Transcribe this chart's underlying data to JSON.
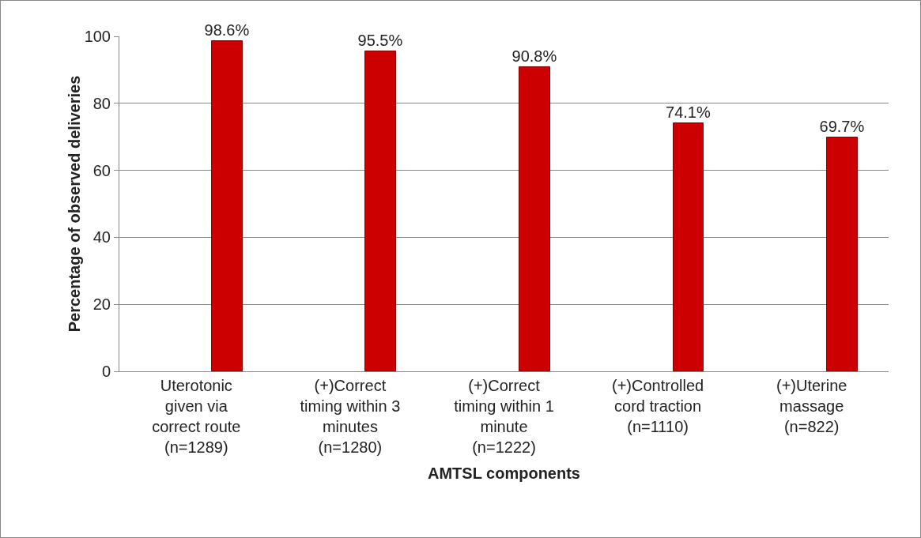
{
  "chart_data": {
    "type": "bar",
    "xlabel": "AMTSL components",
    "ylabel": "Percentage of observed deliveries",
    "categories": [
      "Uterotonic given via correct route (n=1289)",
      "(+)Correct timing within 3 minutes (n=1280)",
      "(+)Correct timing within 1 minute (n=1222)",
      "(+)Controlled cord traction (n=1110)",
      "(+)Uterine massage (n=822)"
    ],
    "values": [
      98.6,
      95.5,
      90.8,
      74.1,
      69.7
    ],
    "value_labels": [
      "98.6%",
      "95.5%",
      "90.8%",
      "74.1%",
      "69.7%"
    ],
    "color": "#cc0000",
    "ylim": [
      0,
      100
    ],
    "yticks": [
      0,
      20,
      40,
      60,
      80,
      100
    ],
    "grid": "y"
  }
}
